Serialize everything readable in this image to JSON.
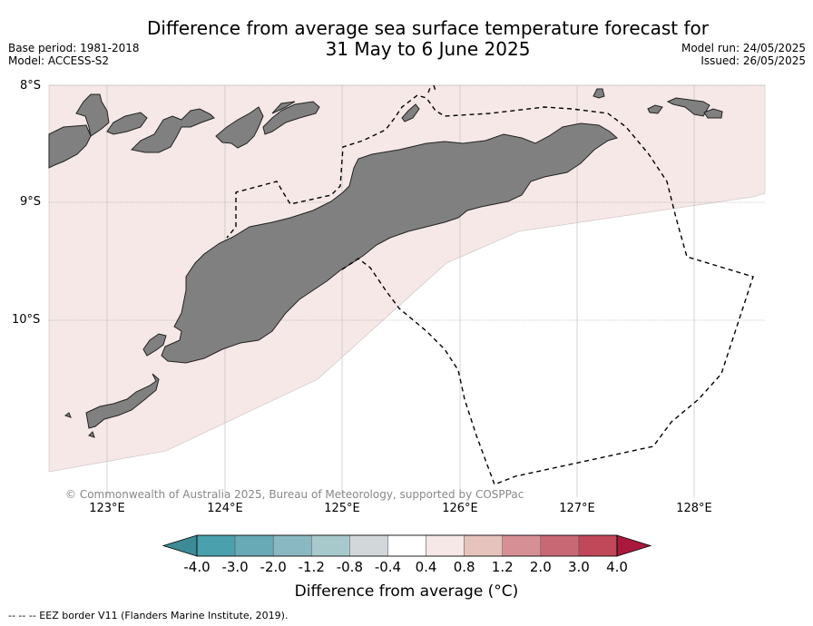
{
  "title_line1": "Difference from average sea surface temperature forecast for",
  "title_line2": "31 May to 6 June 2025",
  "base_period": "Base period: 1981-2018",
  "model": "Model: ACCESS-S2",
  "model_run": "Model run: 24/05/2025",
  "issued": "Issued: 26/05/2025",
  "lat_labels": [
    "8°S",
    "9°S",
    "10°S"
  ],
  "lon_labels": [
    "123°E",
    "124°E",
    "125°E",
    "126°E",
    "127°E",
    "128°E"
  ],
  "copyright": "© Commonwealth of Australia 2025, Bureau of Meteorology, supported by COSPPac",
  "colorbar": {
    "ticks": [
      "-4.0",
      "-3.0",
      "-2.0",
      "-1.2",
      "-0.8",
      "-0.4",
      "0.4",
      "0.8",
      "1.2",
      "2.0",
      "3.0",
      "4.0"
    ],
    "colors": [
      "#3c8b96",
      "#4aa0ac",
      "#68aab6",
      "#8ab8c2",
      "#a8c9cc",
      "#d2d8da",
      "#ffffff",
      "#f5e8e6",
      "#e6c3bc",
      "#d68f95",
      "#c96875",
      "#c04858",
      "#a8193d"
    ],
    "title": "Difference from average (°C)"
  },
  "anomaly_fill_color": "#f5e8e6",
  "land_color": "#808080",
  "legend_note": "-- -- -- EEZ border V11 (Flanders Marine Institute, 2019)."
}
